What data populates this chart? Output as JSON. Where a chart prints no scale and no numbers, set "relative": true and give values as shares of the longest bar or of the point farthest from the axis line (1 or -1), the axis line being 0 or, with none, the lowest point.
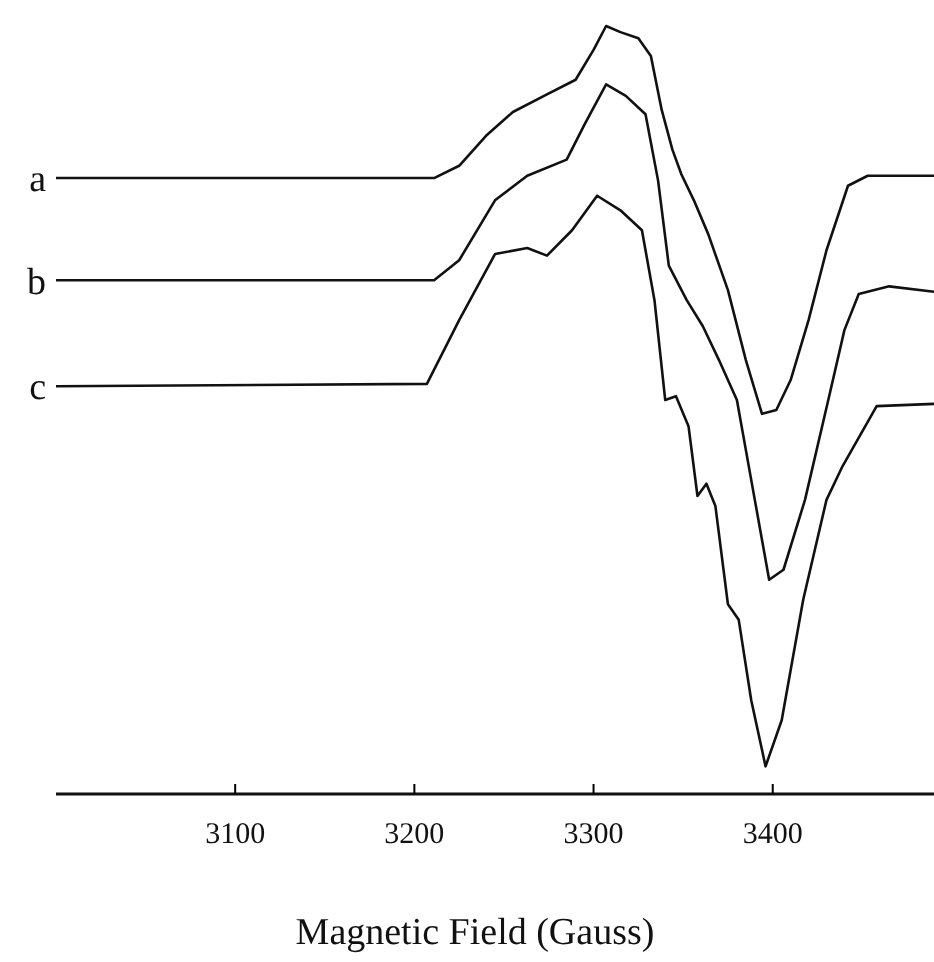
{
  "chart_data": {
    "type": "line",
    "xlabel": "Magnetic Field (Gauss)",
    "xlim": [
      3000,
      3490
    ],
    "xticks": [
      3100,
      3200,
      3300,
      3400
    ],
    "relative": true,
    "marker": "none",
    "line_style": "solid",
    "legend": false,
    "grid": false,
    "series": [
      {
        "name": "a",
        "color": "#111111",
        "x": [
          3000,
          3211,
          3225,
          3240,
          3255,
          3274,
          3290,
          3300,
          3307,
          3315,
          3325,
          3332,
          3338,
          3344,
          3349,
          3356,
          3364,
          3375,
          3385,
          3394,
          3402,
          3410,
          3420,
          3430,
          3442,
          3453,
          3490
        ],
        "values": [
          0.802,
          0.802,
          0.818,
          0.857,
          0.888,
          0.911,
          0.93,
          0.969,
          1,
          0.992,
          0.984,
          0.961,
          0.891,
          0.839,
          0.807,
          0.773,
          0.729,
          0.656,
          0.565,
          0.495,
          0.5,
          0.539,
          0.617,
          0.708,
          0.792,
          0.805,
          0.805
        ]
      },
      {
        "name": "b",
        "color": "#111111",
        "x": [
          3000,
          3211,
          3225,
          3245,
          3263,
          3285,
          3295,
          3307,
          3318,
          3329,
          3336,
          3342,
          3352,
          3361,
          3370,
          3380,
          3390,
          3398,
          3406,
          3418,
          3431,
          3440,
          3448,
          3465,
          3490
        ],
        "values": [
          0.669,
          0.669,
          0.695,
          0.773,
          0.805,
          0.826,
          0.872,
          0.924,
          0.909,
          0.885,
          0.799,
          0.688,
          0.643,
          0.609,
          0.565,
          0.513,
          0.383,
          0.279,
          0.292,
          0.383,
          0.513,
          0.604,
          0.651,
          0.661,
          0.654
        ]
      },
      {
        "name": "c",
        "color": "#111111",
        "x": [
          3000,
          3207,
          3225,
          3245,
          3263,
          3274,
          3288,
          3302,
          3315,
          3327,
          3334,
          3340,
          3346,
          3353,
          3358,
          3363,
          3368,
          3375,
          3381,
          3388,
          3396,
          3405,
          3417,
          3430,
          3439,
          3458,
          3490
        ],
        "values": [
          0.531,
          0.534,
          0.617,
          0.703,
          0.711,
          0.701,
          0.734,
          0.779,
          0.76,
          0.734,
          0.643,
          0.513,
          0.518,
          0.479,
          0.388,
          0.404,
          0.375,
          0.247,
          0.227,
          0.122,
          0.036,
          0.096,
          0.253,
          0.383,
          0.427,
          0.505,
          0.508
        ]
      }
    ]
  }
}
